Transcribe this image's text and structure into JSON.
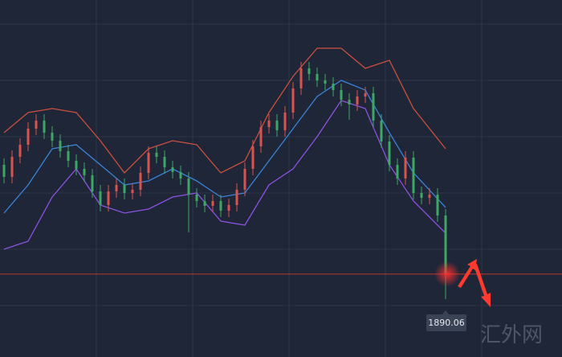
{
  "chart_data": {
    "type": "candlestick",
    "ylim": [
      1838.5,
      2060.5
    ],
    "up_color": "#d9534f",
    "down_color": "#3ea765",
    "open": [
      1958,
      1950.5,
      1963,
      1970.5,
      1980.5,
      1985.5,
      1978,
      1973,
      1966.5,
      1960.5,
      1955.5,
      1951.5,
      1941.5,
      1933,
      1941.5,
      1945.5,
      1940.5,
      1942.5,
      1953,
      1965.5,
      1963,
      1956.5,
      1953.5,
      1949.5,
      1939.5,
      1935.5,
      1932.5,
      1935.5,
      1929.5,
      1933,
      1942.5,
      1955.5,
      1969.5,
      1981.5,
      1985.5,
      1979.5,
      1990.5,
      2005.5,
      2018,
      2014.5,
      2010.5,
      2008.5,
      2004.5,
      1998.5,
      1995.5,
      2000.5,
      2002.5,
      1985.5,
      1972.5,
      1958,
      1949.5,
      1962.5,
      1940.5,
      1937.5,
      1939.5,
      1926.5
    ],
    "close": [
      1950.5,
      1963,
      1970.5,
      1980.5,
      1985.5,
      1978,
      1973,
      1966.5,
      1960.5,
      1955.5,
      1951.5,
      1941.5,
      1933,
      1941.5,
      1945.5,
      1940.5,
      1942.5,
      1953,
      1965.5,
      1963,
      1956.5,
      1953.5,
      1949.5,
      1939.5,
      1935.5,
      1932.5,
      1935.5,
      1929.5,
      1933,
      1942.5,
      1955.5,
      1969.5,
      1981.5,
      1985.5,
      1979.5,
      1990.5,
      2005.5,
      2018,
      2014.5,
      2010.5,
      2008.5,
      2004.5,
      1998.5,
      1995.5,
      2000.5,
      2002.5,
      1985.5,
      1972.5,
      1958,
      1949.5,
      1962.5,
      1940.5,
      1937.5,
      1939.5,
      1926.5,
      1890.06
    ],
    "high": [
      1962,
      1967,
      1974.5,
      1984.5,
      1989.5,
      1989.5,
      1982,
      1977,
      1970.5,
      1964.5,
      1959.5,
      1955.5,
      1945.5,
      1945.5,
      1949.5,
      1949.5,
      1946.5,
      1957,
      1969.5,
      1969.5,
      1967,
      1960.5,
      1957.5,
      1953.5,
      1943.5,
      1939.5,
      1939.5,
      1939.5,
      1937,
      1946.5,
      1959.5,
      1973.5,
      1985.5,
      1989.5,
      1989.5,
      1994.5,
      2009.5,
      2022,
      2022,
      2018.5,
      2014.5,
      2012.5,
      2008.5,
      2002.5,
      2004.5,
      2006.5,
      2006.5,
      1989.5,
      1976.5,
      1962,
      1966.5,
      1966.5,
      1944.5,
      1943.5,
      1943.5,
      1930.5
    ],
    "low": [
      1946.5,
      1946.5,
      1959,
      1966.5,
      1976.5,
      1974,
      1969,
      1962.5,
      1956.5,
      1951.5,
      1947.5,
      1937.5,
      1929,
      1929,
      1937.5,
      1936.5,
      1936.5,
      1938.5,
      1949,
      1959,
      1952.5,
      1949.5,
      1945.5,
      1916,
      1931.5,
      1928.5,
      1928.5,
      1925.5,
      1925.5,
      1929,
      1938.5,
      1951.5,
      1965.5,
      1977.5,
      1975.5,
      1975.5,
      1986.5,
      2001.5,
      2010.5,
      2006.5,
      2004.5,
      2000.5,
      1994.5,
      1986,
      1991.5,
      1996.5,
      1981.5,
      1968.5,
      1954,
      1945.5,
      1945.5,
      1936.5,
      1933.5,
      1933.5,
      1922.5,
      1874.5
    ],
    "bands": {
      "x": [
        0,
        3,
        6,
        9,
        12,
        15,
        18,
        21,
        24,
        27,
        30,
        33,
        36,
        39,
        42,
        45,
        48,
        51,
        55
      ],
      "upper": {
        "color": "#c9503f",
        "values": [
          1978,
          1990.5,
          1993,
          1990.5,
          1973,
          1953,
          1968,
          1973,
          1970.5,
          1953,
          1960.5,
          1990.5,
          2013,
          2030.5,
          2030.5,
          2018,
          2023,
          1993,
          1968
        ]
      },
      "middle": {
        "color": "#3b82d6",
        "values": [
          1928,
          1945.5,
          1968,
          1970.5,
          1958,
          1945.5,
          1948,
          1955.5,
          1948,
          1938,
          1940.5,
          1960.5,
          1980.5,
          2000.5,
          2010.5,
          2004.5,
          1978,
          1953,
          1931.5
        ]
      },
      "lower": {
        "color": "#8c52e0",
        "values": [
          1905.5,
          1910.5,
          1938,
          1955.5,
          1933,
          1928,
          1930.5,
          1938,
          1940.5,
          1923,
          1920.5,
          1945.5,
          1955.5,
          1975.5,
          1998,
          1993,
          1958,
          1935.5,
          1915.5
        ]
      }
    },
    "last_price": 1890.06,
    "watermark": "汇外网"
  }
}
